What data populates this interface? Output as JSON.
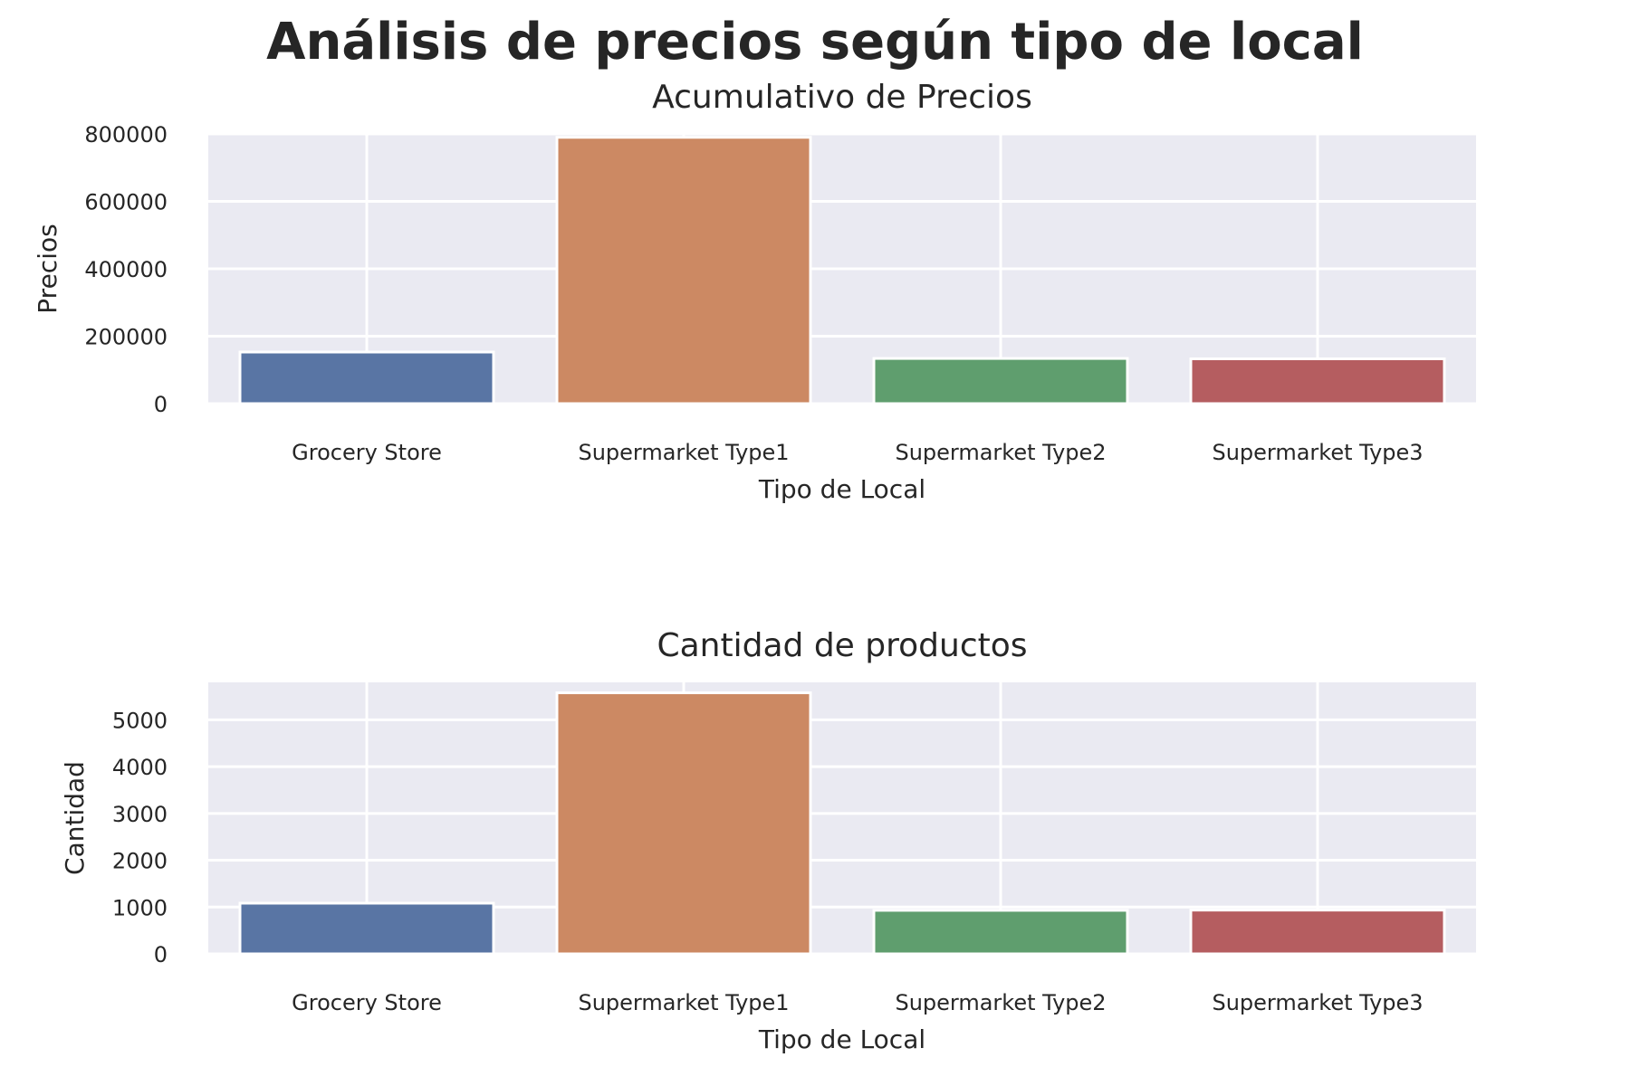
{
  "figure": {
    "suptitle": "Análisis de precios según tipo de local"
  },
  "chart_data": [
    {
      "type": "bar",
      "title": "Acumulativo de Precios",
      "xlabel": "Tipo de Local",
      "ylabel": "Precios",
      "categories": [
        "Grocery Store",
        "Supermarket Type1",
        "Supermarket Type2",
        "Supermarket Type3"
      ],
      "values": [
        153000,
        790000,
        134000,
        133000
      ],
      "ylim": [
        0,
        800000
      ],
      "yticks": [
        0,
        200000,
        400000,
        600000,
        800000
      ],
      "ytick_labels": [
        "0",
        "200000",
        "400000",
        "600000",
        "800000"
      ],
      "colors": [
        "#5975a4",
        "#cc8963",
        "#5f9e6e",
        "#b55d60"
      ],
      "grid": true,
      "background": "#eaeaf2"
    },
    {
      "type": "bar",
      "title": "Cantidad de productos",
      "xlabel": "Tipo de Local",
      "ylabel": "Cantidad",
      "categories": [
        "Grocery Store",
        "Supermarket Type1",
        "Supermarket Type2",
        "Supermarket Type3"
      ],
      "values": [
        1083,
        5577,
        930,
        935
      ],
      "ylim": [
        0,
        5800
      ],
      "yticks": [
        0,
        1000,
        2000,
        3000,
        4000,
        5000
      ],
      "ytick_labels": [
        "0",
        "1000",
        "2000",
        "3000",
        "4000",
        "5000"
      ],
      "colors": [
        "#5975a4",
        "#cc8963",
        "#5f9e6e",
        "#b55d60"
      ],
      "grid": true,
      "background": "#eaeaf2"
    }
  ]
}
